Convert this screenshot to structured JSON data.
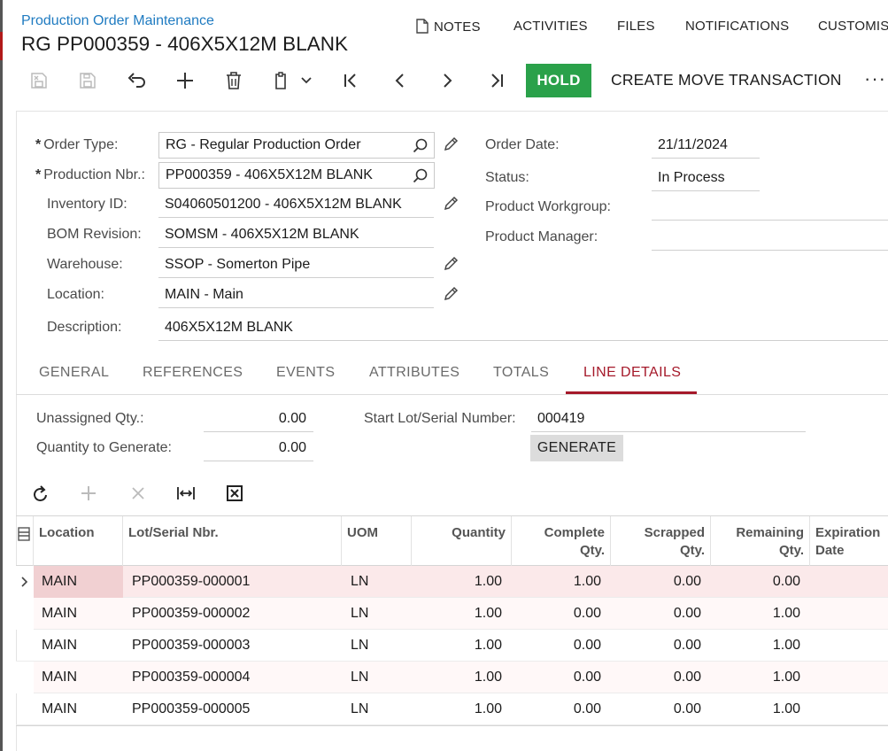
{
  "header": {
    "breadcrumb": "Production Order Maintenance",
    "title": "RG PP000359 - 406X5X12M BLANK"
  },
  "topnav": {
    "notes": "NOTES",
    "activities": "ACTIVITIES",
    "files": "FILES",
    "notifications": "NOTIFICATIONS",
    "customise": "CUSTOMIS"
  },
  "toolbar": {
    "hold_label": "HOLD",
    "create_move_label": "CREATE MOVE TRANSACTION",
    "more_label": "···"
  },
  "form": {
    "order_type_label": "Order Type:",
    "order_type_value": "RG - Regular Production Order",
    "production_nbr_label": "Production Nbr.:",
    "production_nbr_value": "PP000359 - 406X5X12M BLANK",
    "inventory_id_label": "Inventory ID:",
    "inventory_id_value": "S04060501200 - 406X5X12M BLANK",
    "bom_revision_label": "BOM Revision:",
    "bom_revision_value": "SOMSM - 406X5X12M BLANK",
    "warehouse_label": "Warehouse:",
    "warehouse_value": "SSOP - Somerton Pipe",
    "location_label": "Location:",
    "location_value": "MAIN - Main",
    "description_label": "Description:",
    "description_value": "406X5X12M BLANK",
    "order_date_label": "Order Date:",
    "order_date_value": "21/11/2024",
    "status_label": "Status:",
    "status_value": "In Process",
    "product_workgroup_label": "Product Workgroup:",
    "product_workgroup_value": "",
    "product_manager_label": "Product Manager:",
    "product_manager_value": "",
    "required_mark": "*"
  },
  "tabs": [
    {
      "label": "GENERAL"
    },
    {
      "label": "REFERENCES"
    },
    {
      "label": "EVENTS"
    },
    {
      "label": "ATTRIBUTES"
    },
    {
      "label": "TOTALS"
    },
    {
      "label": "LINE DETAILS"
    }
  ],
  "line_details": {
    "unassigned_qty_label": "Unassigned Qty.:",
    "unassigned_qty_value": "0.00",
    "qty_to_generate_label": "Quantity to Generate:",
    "qty_to_generate_value": "0.00",
    "start_lot_label": "Start Lot/Serial Number:",
    "start_lot_value": "000419",
    "generate_label": "GENERATE"
  },
  "grid": {
    "columns": [
      {
        "label": "Location"
      },
      {
        "label": "Lot/Serial Nbr."
      },
      {
        "label": "UOM"
      },
      {
        "label": "Quantity"
      },
      {
        "label": "Complete Qty."
      },
      {
        "label": "Scrapped Qty."
      },
      {
        "label": "Remaining Qty."
      },
      {
        "label": "Expiration Date"
      }
    ],
    "rows": [
      {
        "location": "MAIN",
        "lot": "PP000359-000001",
        "uom": "LN",
        "quantity": "1.00",
        "complete": "1.00",
        "scrapped": "0.00",
        "remaining": "0.00",
        "expiration": ""
      },
      {
        "location": "MAIN",
        "lot": "PP000359-000002",
        "uom": "LN",
        "quantity": "1.00",
        "complete": "0.00",
        "scrapped": "0.00",
        "remaining": "1.00",
        "expiration": ""
      },
      {
        "location": "MAIN",
        "lot": "PP000359-000003",
        "uom": "LN",
        "quantity": "1.00",
        "complete": "0.00",
        "scrapped": "0.00",
        "remaining": "1.00",
        "expiration": ""
      },
      {
        "location": "MAIN",
        "lot": "PP000359-000004",
        "uom": "LN",
        "quantity": "1.00",
        "complete": "0.00",
        "scrapped": "0.00",
        "remaining": "1.00",
        "expiration": ""
      },
      {
        "location": "MAIN",
        "lot": "PP000359-000005",
        "uom": "LN",
        "quantity": "1.00",
        "complete": "0.00",
        "scrapped": "0.00",
        "remaining": "1.00",
        "expiration": ""
      }
    ]
  },
  "colors": {
    "accent_green": "#2aa14a",
    "active_tab": "#a5192a",
    "link_blue": "#1f7bc1",
    "selected_row": "#fbe9ea",
    "selected_cell": "#f1d0d2"
  }
}
